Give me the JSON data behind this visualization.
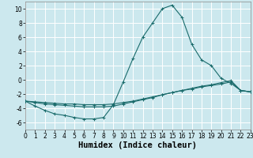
{
  "xlabel": "Humidex (Indice chaleur)",
  "xlim": [
    0,
    23
  ],
  "ylim": [
    -7,
    11
  ],
  "bg_color": "#cce8ee",
  "grid_color": "#ffffff",
  "line_color": "#1a6b6b",
  "series": {
    "line1": {
      "x": [
        0,
        1,
        2,
        3,
        4,
        5,
        6,
        7,
        8,
        9,
        10,
        11,
        12,
        13,
        14,
        15,
        16,
        17,
        18,
        19,
        20,
        21,
        22,
        23
      ],
      "y": [
        -3.0,
        -3.7,
        -4.3,
        -4.8,
        -5.0,
        -5.3,
        -5.5,
        -5.5,
        -5.3,
        -3.5,
        -0.3,
        3.0,
        6.0,
        8.0,
        10.0,
        10.5,
        8.8,
        5.0,
        2.8,
        2.0,
        0.2,
        -0.5,
        -1.5,
        -1.7
      ]
    },
    "line2": {
      "x": [
        0,
        1,
        2,
        3,
        4,
        5,
        6,
        7,
        8,
        9,
        10,
        11,
        12,
        13,
        14,
        15,
        16,
        17,
        18,
        19,
        20,
        21,
        22,
        23
      ],
      "y": [
        -3.0,
        -3.2,
        -3.4,
        -3.5,
        -3.6,
        -3.7,
        -3.8,
        -3.8,
        -3.8,
        -3.7,
        -3.4,
        -3.1,
        -2.8,
        -2.5,
        -2.1,
        -1.8,
        -1.5,
        -1.2,
        -0.9,
        -0.7,
        -0.4,
        -0.1,
        -1.5,
        -1.7
      ]
    },
    "line3": {
      "x": [
        0,
        1,
        2,
        3,
        4,
        5,
        6,
        7,
        8,
        9,
        10,
        11,
        12,
        13,
        14,
        15,
        16,
        17,
        18,
        19,
        20,
        21,
        22,
        23
      ],
      "y": [
        -3.0,
        -3.1,
        -3.2,
        -3.3,
        -3.4,
        -3.4,
        -3.5,
        -3.5,
        -3.5,
        -3.4,
        -3.2,
        -3.0,
        -2.7,
        -2.4,
        -2.1,
        -1.8,
        -1.5,
        -1.3,
        -1.0,
        -0.8,
        -0.6,
        -0.3,
        -1.5,
        -1.7
      ]
    }
  },
  "xticks": [
    0,
    1,
    2,
    3,
    4,
    5,
    6,
    7,
    8,
    9,
    10,
    11,
    12,
    13,
    14,
    15,
    16,
    17,
    18,
    19,
    20,
    21,
    22,
    23
  ],
  "yticks": [
    -6,
    -4,
    -2,
    0,
    2,
    4,
    6,
    8,
    10
  ],
  "tick_fontsize": 5.5,
  "label_fontsize": 7.5
}
